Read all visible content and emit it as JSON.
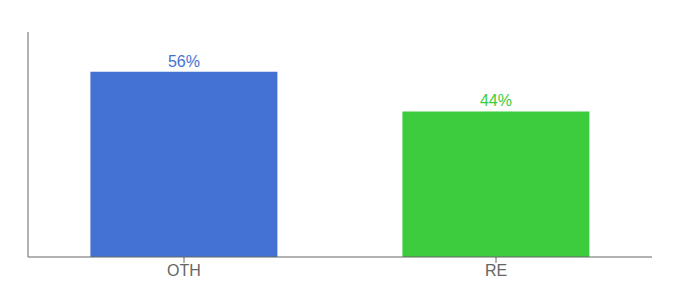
{
  "chart_data": {
    "type": "bar",
    "categories": [
      "OTH",
      "RE"
    ],
    "values": [
      56,
      44
    ],
    "value_labels": [
      "56%",
      "44%"
    ],
    "data_labels": true,
    "colors": [
      "#4472d4",
      "#3dcc3d"
    ],
    "ylim": [
      0,
      68
    ],
    "tick_labels": "x"
  }
}
